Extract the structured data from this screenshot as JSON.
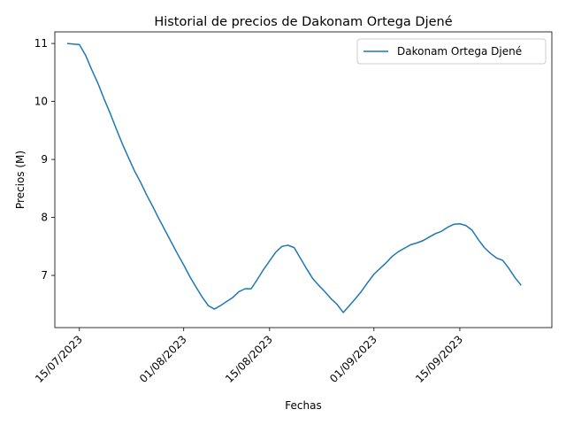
{
  "chart_data": {
    "type": "line",
    "title": "Historial de precios de Dakonam Ortega Djené",
    "xlabel": "Fechas",
    "ylabel": "Precios (M)",
    "x_axis_type": "date",
    "xlim": [
      "2023-07-11",
      "2023-09-30"
    ],
    "ylim": [
      6.1,
      11.2
    ],
    "x_ticks": [
      "2023-07-15",
      "2023-08-01",
      "2023-08-15",
      "2023-09-01",
      "2023-09-15"
    ],
    "x_tick_labels": [
      "15/07/2023",
      "01/08/2023",
      "15/08/2023",
      "01/09/2023",
      "15/09/2023"
    ],
    "y_ticks": [
      7,
      8,
      9,
      10,
      11
    ],
    "y_tick_labels": [
      "7",
      "8",
      "9",
      "10",
      "11"
    ],
    "grid": false,
    "legend_position": "top-right",
    "series": [
      {
        "name": "Dakonam Ortega Djené",
        "color": "#1f77b4",
        "points": [
          [
            "2023-07-13",
            11.0
          ],
          [
            "2023-07-15",
            10.98
          ],
          [
            "2023-07-16",
            10.8
          ],
          [
            "2023-07-17",
            10.55
          ],
          [
            "2023-07-18",
            10.32
          ],
          [
            "2023-07-19",
            10.05
          ],
          [
            "2023-07-20",
            9.8
          ],
          [
            "2023-07-21",
            9.53
          ],
          [
            "2023-07-22",
            9.27
          ],
          [
            "2023-07-23",
            9.03
          ],
          [
            "2023-07-24",
            8.8
          ],
          [
            "2023-07-25",
            8.6
          ],
          [
            "2023-07-26",
            8.38
          ],
          [
            "2023-07-27",
            8.18
          ],
          [
            "2023-07-28",
            7.97
          ],
          [
            "2023-07-29",
            7.77
          ],
          [
            "2023-07-30",
            7.57
          ],
          [
            "2023-07-31",
            7.37
          ],
          [
            "2023-08-01",
            7.18
          ],
          [
            "2023-08-02",
            6.98
          ],
          [
            "2023-08-03",
            6.8
          ],
          [
            "2023-08-04",
            6.63
          ],
          [
            "2023-08-05",
            6.48
          ],
          [
            "2023-08-06",
            6.42
          ],
          [
            "2023-08-07",
            6.48
          ],
          [
            "2023-08-08",
            6.55
          ],
          [
            "2023-08-09",
            6.62
          ],
          [
            "2023-08-10",
            6.72
          ],
          [
            "2023-08-11",
            6.77
          ],
          [
            "2023-08-12",
            6.77
          ],
          [
            "2023-08-13",
            6.93
          ],
          [
            "2023-08-14",
            7.1
          ],
          [
            "2023-08-15",
            7.25
          ],
          [
            "2023-08-16",
            7.4
          ],
          [
            "2023-08-17",
            7.5
          ],
          [
            "2023-08-18",
            7.52
          ],
          [
            "2023-08-19",
            7.48
          ],
          [
            "2023-08-20",
            7.3
          ],
          [
            "2023-08-21",
            7.12
          ],
          [
            "2023-08-22",
            6.95
          ],
          [
            "2023-08-23",
            6.83
          ],
          [
            "2023-08-24",
            6.72
          ],
          [
            "2023-08-25",
            6.6
          ],
          [
            "2023-08-26",
            6.5
          ],
          [
            "2023-08-27",
            6.36
          ],
          [
            "2023-08-28",
            6.48
          ],
          [
            "2023-08-29",
            6.6
          ],
          [
            "2023-08-30",
            6.73
          ],
          [
            "2023-08-31",
            6.88
          ],
          [
            "2023-09-01",
            7.02
          ],
          [
            "2023-09-02",
            7.12
          ],
          [
            "2023-09-03",
            7.22
          ],
          [
            "2023-09-04",
            7.33
          ],
          [
            "2023-09-05",
            7.41
          ],
          [
            "2023-09-06",
            7.47
          ],
          [
            "2023-09-07",
            7.53
          ],
          [
            "2023-09-08",
            7.56
          ],
          [
            "2023-09-09",
            7.6
          ],
          [
            "2023-09-10",
            7.66
          ],
          [
            "2023-09-11",
            7.72
          ],
          [
            "2023-09-12",
            7.76
          ],
          [
            "2023-09-13",
            7.83
          ],
          [
            "2023-09-14",
            7.88
          ],
          [
            "2023-09-15",
            7.89
          ],
          [
            "2023-09-16",
            7.86
          ],
          [
            "2023-09-17",
            7.78
          ],
          [
            "2023-09-18",
            7.62
          ],
          [
            "2023-09-19",
            7.48
          ],
          [
            "2023-09-20",
            7.38
          ],
          [
            "2023-09-21",
            7.3
          ],
          [
            "2023-09-22",
            7.26
          ],
          [
            "2023-09-23",
            7.12
          ],
          [
            "2023-09-24",
            6.96
          ],
          [
            "2023-09-25",
            6.83
          ]
        ]
      }
    ]
  }
}
